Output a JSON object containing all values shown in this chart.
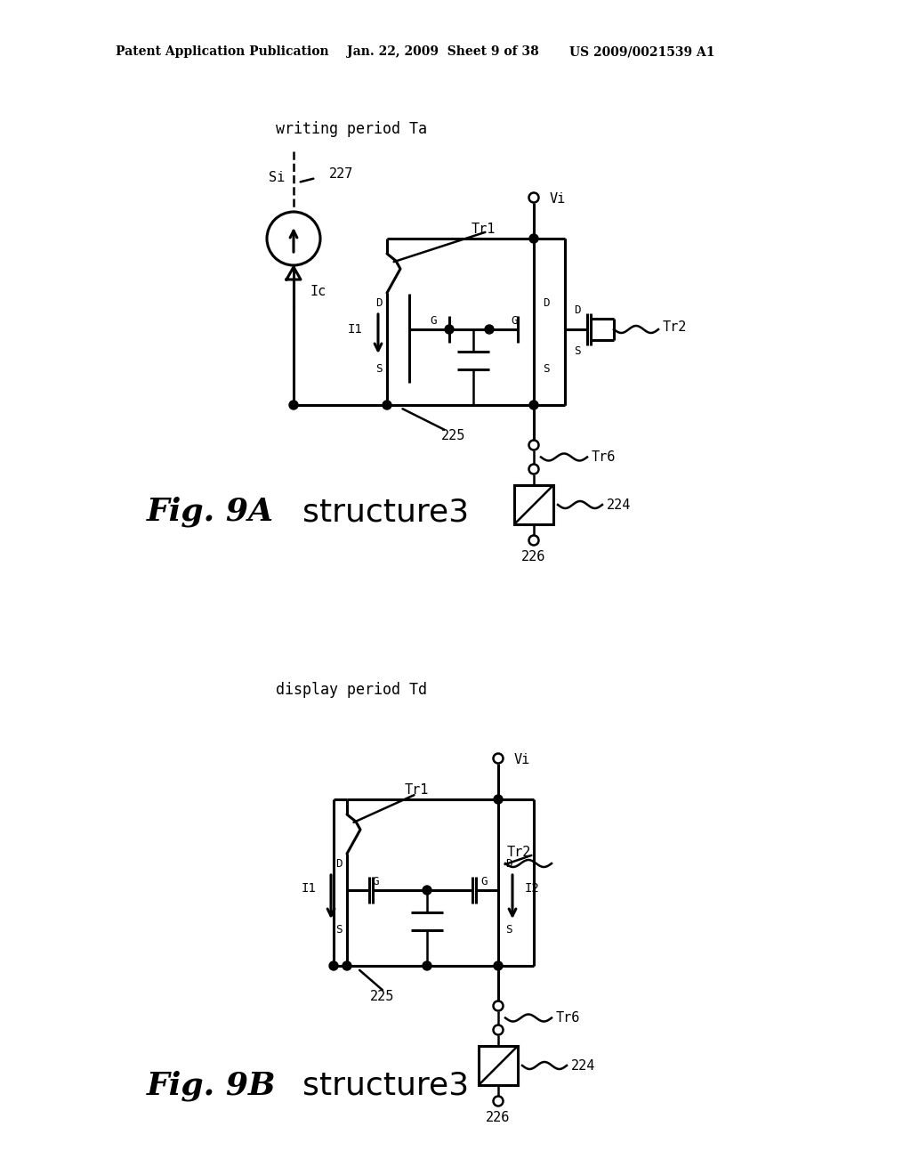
{
  "bg_color": "#ffffff",
  "text_color": "#000000",
  "header_text1": "Patent Application Publication",
  "header_text2": "Jan. 22, 2009  Sheet 9 of 38",
  "header_text3": "US 2009/0021539 A1",
  "fig9a_title": "writing period Ta",
  "fig9b_title": "display period Td",
  "fig9a_label": "Fig. 9A",
  "fig9a_label2": "structure3",
  "fig9b_label": "Fig. 9B",
  "fig9b_label2": "structure3"
}
